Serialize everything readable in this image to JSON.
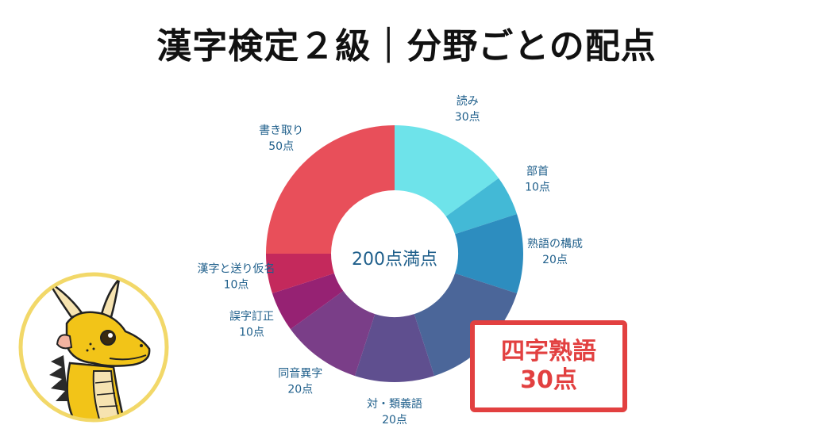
{
  "title": "漢字検定２級｜分野ごとの配点",
  "callout": {
    "line1": "四字熟語",
    "line2": "30点",
    "color": "#e24040"
  },
  "chart_data": {
    "type": "pie",
    "variant": "donut",
    "center_label": "200点満点",
    "total": 200,
    "start": "12 o'clock, clockwise",
    "slices": [
      {
        "label": "読み",
        "value": 30,
        "value_label": "30点",
        "color": "#6ee3ea"
      },
      {
        "label": "部首",
        "value": 10,
        "value_label": "10点",
        "color": "#43b9d6"
      },
      {
        "label": "熟語の構成",
        "value": 20,
        "value_label": "20点",
        "color": "#2d8dbf"
      },
      {
        "label": "四字熟語",
        "value": 30,
        "value_label": "",
        "color": "#4b6699"
      },
      {
        "label": "対・類義語",
        "value": 20,
        "value_label": "20点",
        "color": "#5f4f8f"
      },
      {
        "label": "同音異字",
        "value": 20,
        "value_label": "20点",
        "color": "#7a3e88"
      },
      {
        "label": "誤字訂正",
        "value": 10,
        "value_label": "10点",
        "color": "#962273"
      },
      {
        "label": "漢字と送り仮名",
        "value": 10,
        "value_label": "10点",
        "color": "#c4295c"
      },
      {
        "label": "書き取り",
        "value": 50,
        "value_label": "50点",
        "color": "#e84f5a"
      }
    ]
  }
}
